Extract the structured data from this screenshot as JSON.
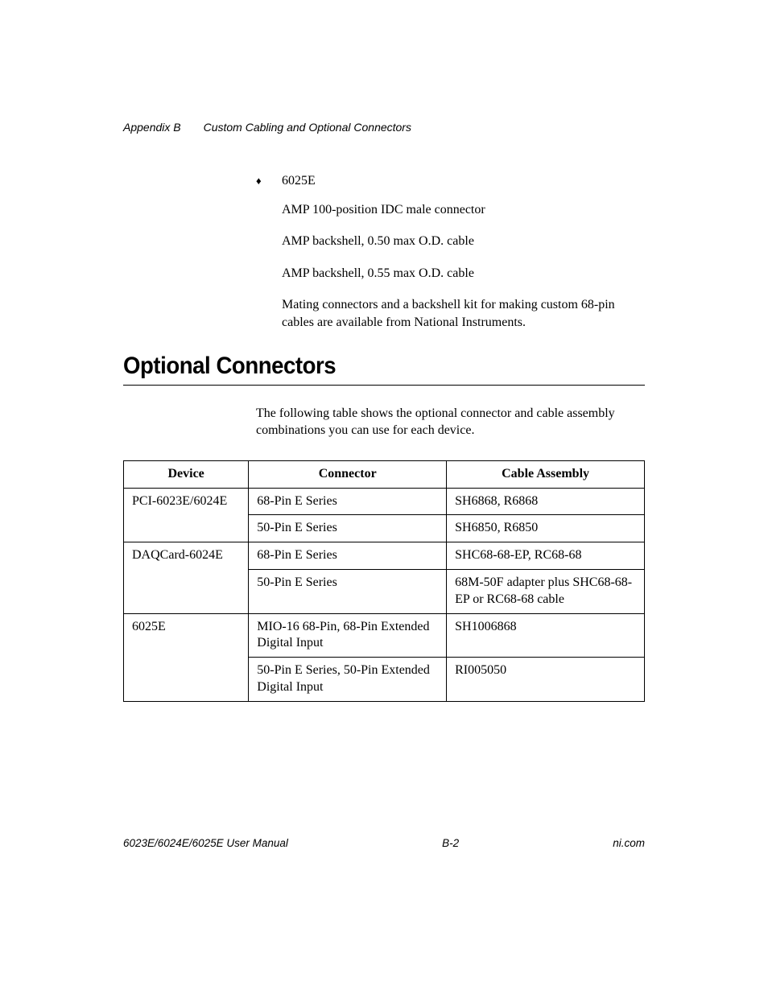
{
  "header": {
    "appendix": "Appendix B",
    "title": "Custom Cabling and Optional Connectors"
  },
  "bullet": {
    "mark": "♦",
    "label": "6025E",
    "lines": [
      "AMP 100-position IDC male connector",
      "AMP backshell, 0.50 max O.D. cable",
      "AMP backshell, 0.55 max O.D. cable",
      "Mating connectors and a backshell kit for making custom 68-pin cables are available from National Instruments."
    ]
  },
  "section": {
    "heading": "Optional Connectors",
    "intro": "The following table shows the optional connector and cable assembly combinations you can use for each device."
  },
  "table": {
    "columns": [
      "Device",
      "Connector",
      "Cable Assembly"
    ],
    "rows": [
      {
        "device": "PCI-6023E/6024E",
        "connector": "68-Pin E Series",
        "cable": "SH6868, R6868",
        "first": true
      },
      {
        "device": "",
        "connector": "50-Pin E Series",
        "cable": "SH6850, R6850",
        "first": false
      },
      {
        "device": "DAQCard-6024E",
        "connector": "68-Pin E Series",
        "cable": "SHC68-68-EP, RC68-68",
        "first": true
      },
      {
        "device": "",
        "connector": "50-Pin E Series",
        "cable": "68M-50F adapter plus SHC68-68-EP or RC68-68 cable",
        "first": false
      },
      {
        "device": "6025E",
        "connector": "MIO-16 68-Pin, 68-Pin Extended Digital Input",
        "cable": "SH1006868",
        "first": true
      },
      {
        "device": "",
        "connector": "50-Pin E Series, 50-Pin Extended Digital Input",
        "cable": "RI005050",
        "first": false
      }
    ]
  },
  "footer": {
    "left": "6023E/6024E/6025E User Manual",
    "center": "B-2",
    "right": "ni.com"
  },
  "style": {
    "page_bg": "#ffffff",
    "text_color": "#000000",
    "rule_color": "#000000",
    "body_font": "Times New Roman",
    "heading_font": "Arial",
    "header_font": "Arial Italic",
    "heading_fontsize_pt": 22,
    "body_fontsize_pt": 12,
    "header_fontsize_pt": 10.5,
    "footer_fontsize_pt": 10
  }
}
